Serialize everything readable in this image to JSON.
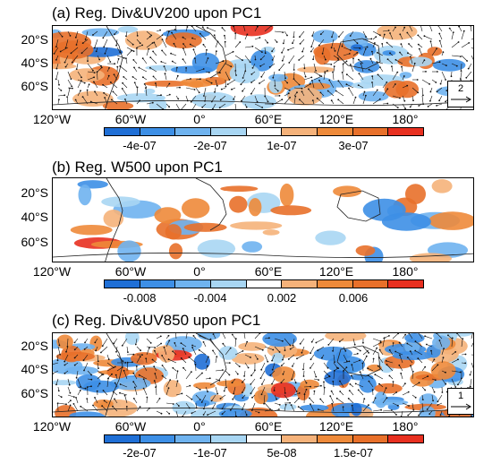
{
  "panels": [
    {
      "id": "a",
      "title": "(a) Reg. Div&UV200 upon PC1",
      "ref_vector": "2",
      "colorbar_labels": [
        "-4e-07",
        "-2e-07",
        "1e-07",
        "3e-07"
      ],
      "has_vectors": true
    },
    {
      "id": "b",
      "title": "(b) Reg. W500 upon PC1",
      "colorbar_labels": [
        "-0.008",
        "-0.004",
        "0.002",
        "0.006"
      ],
      "has_vectors": false
    },
    {
      "id": "c",
      "title": "(c) Reg. Div&UV850 upon PC1",
      "ref_vector": "1",
      "colorbar_labels": [
        "-2e-07",
        "-1e-07",
        "5e-08",
        "1.5e-07"
      ],
      "has_vectors": true
    }
  ],
  "lat_labels": [
    "20°S",
    "40°S",
    "60°S"
  ],
  "lon_labels": [
    "120°W",
    "60°W",
    "0°",
    "60°E",
    "120°E",
    "180°"
  ],
  "colorbar_colors": [
    "#1f6fd6",
    "#3d8fe6",
    "#6fb3ef",
    "#a8d6f3",
    "#ffffff",
    "#f5b27a",
    "#ee8a3a",
    "#e8702a",
    "#e83020"
  ]
}
